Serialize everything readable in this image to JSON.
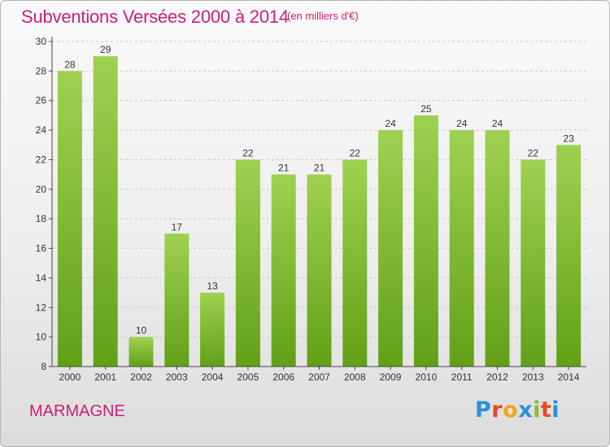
{
  "header": {
    "title": "Subventions Versées 2000 à 2014",
    "subtitle": "(en milliers d'€)"
  },
  "footer": {
    "commune": "MARMAGNE",
    "brand_letters": [
      "P",
      "r",
      "o",
      "x",
      "i",
      "t",
      "i"
    ],
    "brand_colors": [
      "#2b8fd6",
      "#e7462a",
      "#f2a51d",
      "#2b8fd6",
      "#8cbd2a",
      "#e7462a",
      "#2b8fd6"
    ]
  },
  "colors": {
    "accent": "#cc1f73",
    "bar_top": "#9fd150",
    "bar_bottom": "#62a017",
    "grid": "#c8c8c8",
    "axis": "#444444"
  },
  "chart_data": {
    "type": "bar",
    "title": "Subventions Versées 2000 à 2014",
    "subtitle": "(en milliers d'€)",
    "categories": [
      "2000",
      "2001",
      "2002",
      "2003",
      "2004",
      "2005",
      "2006",
      "2007",
      "2008",
      "2009",
      "2010",
      "2011",
      "2012",
      "2013",
      "2014"
    ],
    "values": [
      28,
      29,
      10,
      17,
      13,
      22,
      21,
      21,
      22,
      24,
      25,
      24,
      24,
      22,
      23
    ],
    "ylim": [
      8,
      30
    ],
    "yticks": [
      8,
      10,
      12,
      14,
      16,
      18,
      20,
      22,
      24,
      26,
      28,
      30
    ],
    "grid": true,
    "xlabel": "",
    "ylabel": ""
  }
}
